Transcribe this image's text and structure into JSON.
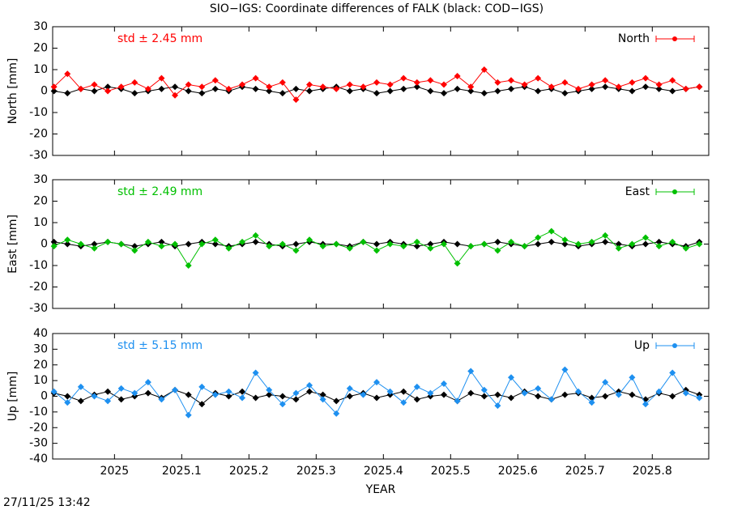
{
  "title": "SIO−IGS: Coordinate differences of FALK (black: COD−IGS)",
  "timestamp": "27/11/25 13:42",
  "chart_data": [
    {
      "type": "line",
      "ylabel": "North [mm]",
      "annotation": "std ± 2.45 mm",
      "xlim": [
        2024.908,
        2025.884
      ],
      "xticks": [
        2025,
        2025.1,
        2025.2,
        2025.3,
        2025.4,
        2025.5,
        2025.6,
        2025.7,
        2025.8
      ],
      "ylim": [
        -30,
        30
      ],
      "yticks": [
        -30,
        -20,
        -10,
        0,
        10,
        20,
        30
      ],
      "x": [
        2024.91,
        2024.93,
        2024.95,
        2024.97,
        2024.99,
        2025.01,
        2025.03,
        2025.05,
        2025.07,
        2025.09,
        2025.11,
        2025.13,
        2025.15,
        2025.17,
        2025.19,
        2025.21,
        2025.23,
        2025.25,
        2025.27,
        2025.29,
        2025.31,
        2025.33,
        2025.35,
        2025.37,
        2025.39,
        2025.41,
        2025.43,
        2025.45,
        2025.47,
        2025.49,
        2025.51,
        2025.53,
        2025.55,
        2025.57,
        2025.59,
        2025.61,
        2025.63,
        2025.65,
        2025.67,
        2025.69,
        2025.71,
        2025.73,
        2025.75,
        2025.77,
        2025.79,
        2025.81,
        2025.83,
        2025.85,
        2025.87
      ],
      "series": [
        {
          "color": "#000000",
          "values": [
            0,
            -1,
            1,
            0,
            2,
            1,
            -1,
            0,
            1,
            2,
            0,
            -1,
            1,
            0,
            2,
            1,
            0,
            -1,
            1,
            0,
            1,
            2,
            0,
            1,
            -1,
            0,
            1,
            2,
            0,
            -1,
            1,
            0,
            -1,
            0,
            1,
            2,
            0,
            1,
            -1,
            0,
            1,
            2,
            1,
            0,
            2,
            1,
            0,
            1,
            2
          ]
        },
        {
          "name": "North",
          "color": "#ff0000",
          "values": [
            2,
            8,
            1,
            3,
            0,
            2,
            4,
            1,
            6,
            -2,
            3,
            2,
            5,
            1,
            3,
            6,
            2,
            4,
            -4,
            3,
            2,
            1,
            3,
            2,
            4,
            3,
            6,
            4,
            5,
            3,
            7,
            2,
            10,
            4,
            5,
            3,
            6,
            2,
            4,
            1,
            3,
            5,
            2,
            4,
            6,
            3,
            5,
            1,
            2
          ]
        }
      ]
    },
    {
      "type": "line",
      "ylabel": "East [mm]",
      "annotation": "std ± 2.49 mm",
      "xlim": [
        2024.908,
        2025.884
      ],
      "xticks": [
        2025,
        2025.1,
        2025.2,
        2025.3,
        2025.4,
        2025.5,
        2025.6,
        2025.7,
        2025.8
      ],
      "ylim": [
        -30,
        30
      ],
      "yticks": [
        -30,
        -20,
        -10,
        0,
        10,
        20,
        30
      ],
      "x": [
        2024.91,
        2024.93,
        2024.95,
        2024.97,
        2024.99,
        2025.01,
        2025.03,
        2025.05,
        2025.07,
        2025.09,
        2025.11,
        2025.13,
        2025.15,
        2025.17,
        2025.19,
        2025.21,
        2025.23,
        2025.25,
        2025.27,
        2025.29,
        2025.31,
        2025.33,
        2025.35,
        2025.37,
        2025.39,
        2025.41,
        2025.43,
        2025.45,
        2025.47,
        2025.49,
        2025.51,
        2025.53,
        2025.55,
        2025.57,
        2025.59,
        2025.61,
        2025.63,
        2025.65,
        2025.67,
        2025.69,
        2025.71,
        2025.73,
        2025.75,
        2025.77,
        2025.79,
        2025.81,
        2025.83,
        2025.85,
        2025.87
      ],
      "series": [
        {
          "color": "#000000",
          "values": [
            1,
            0,
            -1,
            0,
            1,
            0,
            -1,
            0,
            1,
            -1,
            0,
            1,
            0,
            -1,
            0,
            1,
            0,
            -1,
            0,
            1,
            0,
            0,
            -1,
            1,
            0,
            1,
            0,
            -1,
            0,
            1,
            0,
            -1,
            0,
            1,
            0,
            -1,
            0,
            1,
            0,
            -1,
            0,
            1,
            0,
            -1,
            0,
            1,
            0,
            -1,
            1
          ]
        },
        {
          "name": "East",
          "color": "#00c000",
          "values": [
            -1,
            2,
            0,
            -2,
            1,
            0,
            -3,
            1,
            -1,
            0,
            -10,
            0,
            2,
            -2,
            1,
            4,
            -1,
            0,
            -3,
            2,
            -1,
            0,
            -2,
            1,
            -3,
            0,
            -1,
            1,
            -2,
            0,
            -9,
            -1,
            0,
            -3,
            1,
            -1,
            3,
            6,
            2,
            0,
            1,
            4,
            -2,
            0,
            3,
            -1,
            1,
            -2,
            0
          ]
        }
      ]
    },
    {
      "type": "line",
      "ylabel": "Up [mm]",
      "xlabel": "YEAR",
      "annotation": "std ± 5.15 mm",
      "xlim": [
        2024.908,
        2025.884
      ],
      "xticks": [
        2025,
        2025.1,
        2025.2,
        2025.3,
        2025.4,
        2025.5,
        2025.6,
        2025.7,
        2025.8
      ],
      "ylim": [
        -40,
        40
      ],
      "yticks": [
        -40,
        -30,
        -20,
        -10,
        0,
        10,
        20,
        30,
        40
      ],
      "x": [
        2024.91,
        2024.93,
        2024.95,
        2024.97,
        2024.99,
        2025.01,
        2025.03,
        2025.05,
        2025.07,
        2025.09,
        2025.11,
        2025.13,
        2025.15,
        2025.17,
        2025.19,
        2025.21,
        2025.23,
        2025.25,
        2025.27,
        2025.29,
        2025.31,
        2025.33,
        2025.35,
        2025.37,
        2025.39,
        2025.41,
        2025.43,
        2025.45,
        2025.47,
        2025.49,
        2025.51,
        2025.53,
        2025.55,
        2025.57,
        2025.59,
        2025.61,
        2025.63,
        2025.65,
        2025.67,
        2025.69,
        2025.71,
        2025.73,
        2025.75,
        2025.77,
        2025.79,
        2025.81,
        2025.83,
        2025.85,
        2025.87
      ],
      "series": [
        {
          "color": "#000000",
          "values": [
            2,
            0,
            -3,
            1,
            3,
            -2,
            0,
            2,
            -1,
            4,
            1,
            -5,
            2,
            0,
            3,
            -1,
            1,
            0,
            -2,
            3,
            1,
            -3,
            0,
            2,
            -1,
            1,
            3,
            -2,
            0,
            1,
            -3,
            2,
            0,
            1,
            -1,
            3,
            0,
            -2,
            1,
            2,
            -1,
            0,
            3,
            1,
            -2,
            2,
            0,
            4,
            1
          ]
        },
        {
          "name": "Up",
          "color": "#1e90f0",
          "values": [
            3,
            -4,
            6,
            0,
            -3,
            5,
            2,
            9,
            -2,
            4,
            -12,
            6,
            1,
            3,
            -1,
            15,
            4,
            -5,
            2,
            7,
            -2,
            -11,
            5,
            1,
            9,
            3,
            -4,
            6,
            2,
            8,
            -3,
            16,
            4,
            -6,
            12,
            2,
            5,
            -2,
            17,
            3,
            -4,
            9,
            1,
            12,
            -5,
            3,
            15,
            2,
            -1
          ]
        }
      ]
    }
  ]
}
